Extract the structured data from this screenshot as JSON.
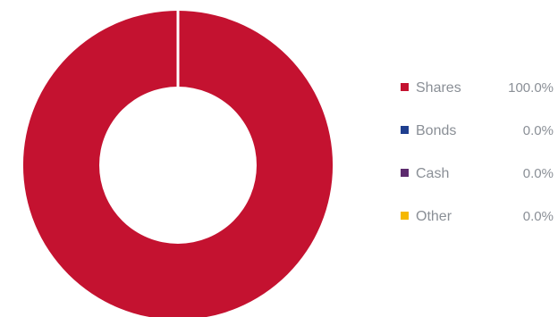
{
  "chart_data": {
    "type": "pie",
    "donut": true,
    "legend_position": "right",
    "slices": [
      {
        "label": "Shares",
        "value": 100.0,
        "display": "100.0%",
        "color": "#c41230"
      },
      {
        "label": "Bonds",
        "value": 0.0,
        "display": "0.0%",
        "color": "#1f3f8f"
      },
      {
        "label": "Cash",
        "value": 0.0,
        "display": "0.0%",
        "color": "#5c2a6e"
      },
      {
        "label": "Other",
        "value": 0.0,
        "display": "0.0%",
        "color": "#f5b800"
      }
    ]
  }
}
